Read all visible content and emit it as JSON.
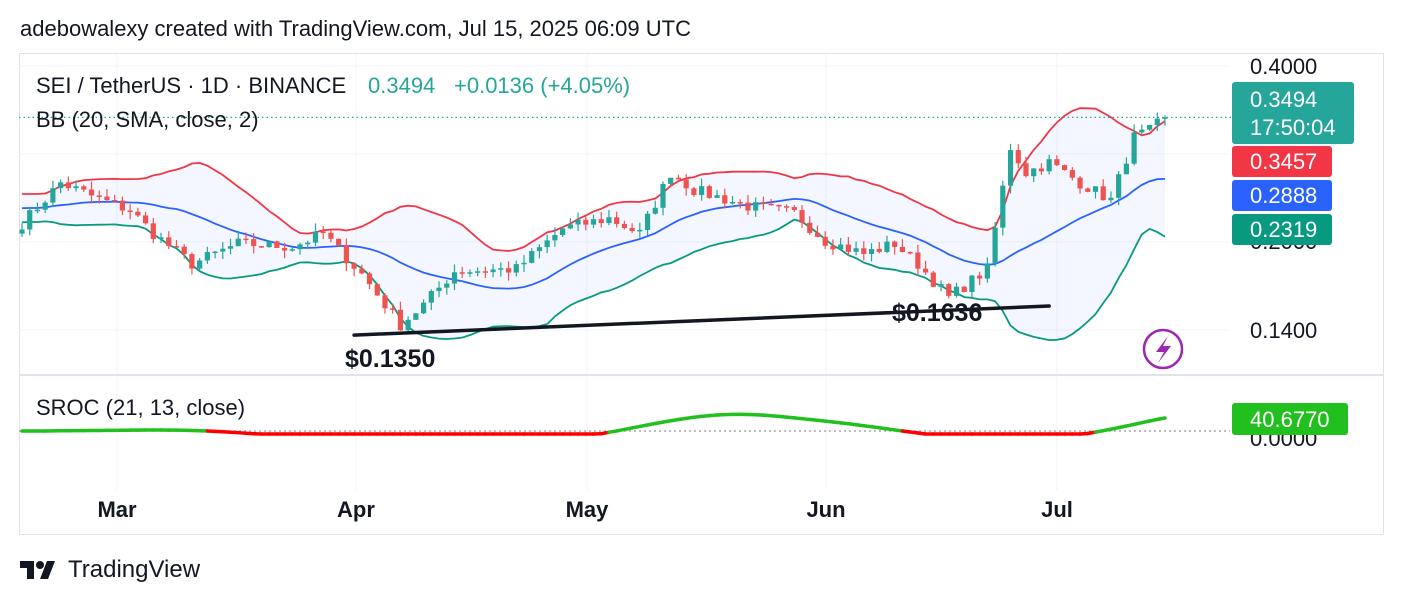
{
  "header": {
    "attribution": "adebowalexy created with TradingView.com, Jul 15, 2025 06:09 UTC"
  },
  "symbol": {
    "title": "SEI / TetherUS · 1D · BINANCE",
    "last": "0.3494",
    "change": "+0.0136 (+4.05%)",
    "change_color": "#26a69a"
  },
  "indicators": {
    "bb_label": "BB (20, SMA, close, 2)",
    "sroc_label": "SROC (21, 13, close)"
  },
  "price_axis": {
    "ticks": [
      "0.4000",
      "0.1400"
    ],
    "obscured_tick": "0.2000"
  },
  "sroc_axis": {
    "obscured_tick": "0.0000"
  },
  "badges": {
    "last_price": "0.3494",
    "countdown": "17:50:04",
    "bb_upper": "0.3457",
    "bb_basis": "0.2888",
    "bb_lower": "0.2319",
    "sroc_value": "40.6770"
  },
  "annotations": {
    "low_april": "$0.1350",
    "low_june": "$0.1636"
  },
  "time_axis": [
    "Mar",
    "Apr",
    "May",
    "Jun",
    "Jul"
  ],
  "footer": {
    "brand": "TradingView"
  },
  "colors": {
    "up": "#26a69a",
    "down": "#ef5350",
    "bb_upper": "#f23645",
    "bb_basis": "#2962ff",
    "bb_lower": "#089981",
    "sroc_up": "#22c01e",
    "sroc_down": "#ff0000",
    "badge_last": "#26a69a"
  },
  "chart_data": {
    "type": "candlestick",
    "title": "SEI / TetherUS · 1D · BINANCE",
    "price_range": [
      0.12,
      0.4
    ],
    "x_labels": [
      "Mar",
      "Apr",
      "May",
      "Jun",
      "Jul"
    ],
    "ohlc_close_anchors": [
      {
        "date": "2025-02-17",
        "close": 0.245
      },
      {
        "date": "2025-02-22",
        "close": 0.285
      },
      {
        "date": "2025-02-26",
        "close": 0.272
      },
      {
        "date": "2025-03-03",
        "close": 0.258
      },
      {
        "date": "2025-03-06",
        "close": 0.235
      },
      {
        "date": "2025-03-11",
        "close": 0.205
      },
      {
        "date": "2025-03-17",
        "close": 0.225
      },
      {
        "date": "2025-03-24",
        "close": 0.222
      },
      {
        "date": "2025-03-28",
        "close": 0.235
      },
      {
        "date": "2025-04-02",
        "close": 0.195
      },
      {
        "date": "2025-04-07",
        "close": 0.145
      },
      {
        "date": "2025-04-10",
        "close": 0.165
      },
      {
        "date": "2025-04-14",
        "close": 0.198
      },
      {
        "date": "2025-04-22",
        "close": 0.2
      },
      {
        "date": "2025-04-28",
        "close": 0.24
      },
      {
        "date": "2025-05-04",
        "close": 0.25
      },
      {
        "date": "2025-05-08",
        "close": 0.235
      },
      {
        "date": "2025-05-12",
        "close": 0.295
      },
      {
        "date": "2025-05-15",
        "close": 0.278
      },
      {
        "date": "2025-05-22",
        "close": 0.262
      },
      {
        "date": "2025-05-28",
        "close": 0.255
      },
      {
        "date": "2025-06-01",
        "close": 0.228
      },
      {
        "date": "2025-06-06",
        "close": 0.215
      },
      {
        "date": "2025-06-10",
        "close": 0.225
      },
      {
        "date": "2025-06-13",
        "close": 0.205
      },
      {
        "date": "2025-06-17",
        "close": 0.172
      },
      {
        "date": "2025-06-22",
        "close": 0.2
      },
      {
        "date": "2025-06-25",
        "close": 0.32
      },
      {
        "date": "2025-06-27",
        "close": 0.295
      },
      {
        "date": "2025-06-30",
        "close": 0.305
      },
      {
        "date": "2025-07-04",
        "close": 0.285
      },
      {
        "date": "2025-07-08",
        "close": 0.268
      },
      {
        "date": "2025-07-11",
        "close": 0.33
      },
      {
        "date": "2025-07-13",
        "close": 0.336
      },
      {
        "date": "2025-07-15",
        "close": 0.3494
      }
    ],
    "last_close": 0.3494,
    "trendline": [
      {
        "date": "2025-04-01",
        "price": 0.135
      },
      {
        "date": "2025-06-30",
        "price": 0.1636
      }
    ],
    "bollinger_bands": {
      "params": "20, SMA, close, 2",
      "upper_last": 0.3457,
      "basis_last": 0.2888,
      "lower_last": 0.2319
    },
    "sroc": {
      "params": "21, 13, close",
      "last": 40.677
    }
  }
}
